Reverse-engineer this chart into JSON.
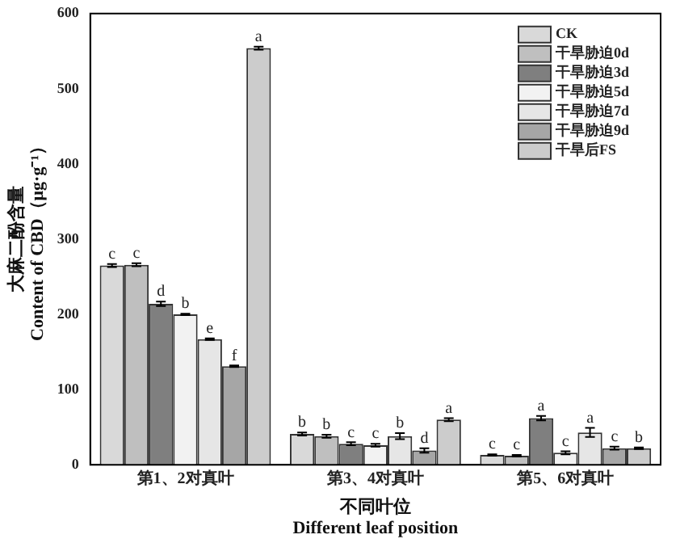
{
  "chart_data": {
    "type": "bar",
    "xlabel": "不同叶位\nDifferent leaf position",
    "ylabel": "大麻二酚含量\nContent of CBD（μg·g⁻¹）",
    "categories": [
      "第1、2对真叶",
      "第3、4对真叶",
      "第5、6对真叶"
    ],
    "series": [
      {
        "name": "CK",
        "color": "#d9d9d9",
        "values": [
          265,
          41,
          13
        ],
        "errors": [
          2,
          2,
          1
        ],
        "value_labels": [
          "c",
          "b",
          "c"
        ]
      },
      {
        "name": "干旱胁迫0d",
        "color": "#bfbfbf",
        "values": [
          266,
          38,
          12
        ],
        "errors": [
          2,
          2,
          1
        ],
        "value_labels": [
          "c",
          "b",
          "c"
        ]
      },
      {
        "name": "干旱胁迫3d",
        "color": "#7f7f7f",
        "values": [
          214,
          28,
          62
        ],
        "errors": [
          3,
          2,
          3
        ],
        "value_labels": [
          "d",
          "c",
          "a"
        ]
      },
      {
        "name": "干旱胁迫5d",
        "color": "#f2f2f2",
        "values": [
          200,
          26,
          16
        ],
        "errors": [
          1,
          2,
          2
        ],
        "value_labels": [
          "b",
          "c",
          "c"
        ]
      },
      {
        "name": "干旱胁迫7d",
        "color": "#e6e6e6",
        "values": [
          167,
          38,
          43
        ],
        "errors": [
          1,
          4,
          6
        ],
        "value_labels": [
          "e",
          "b",
          "a"
        ]
      },
      {
        "name": "干旱胁迫9d",
        "color": "#a6a6a6",
        "values": [
          131,
          19,
          22
        ],
        "errors": [
          1,
          3,
          2
        ],
        "value_labels": [
          "f",
          "d",
          "c"
        ]
      },
      {
        "name": "干旱后FS",
        "color": "#cccccc",
        "values": [
          554,
          60,
          22
        ],
        "errors": [
          2,
          2,
          1
        ],
        "value_labels": [
          "a",
          "a",
          "b"
        ]
      }
    ],
    "ylim": [
      0,
      600
    ],
    "yticks": [
      0,
      100,
      200,
      300,
      400,
      500,
      600
    ],
    "legend": "top right"
  }
}
